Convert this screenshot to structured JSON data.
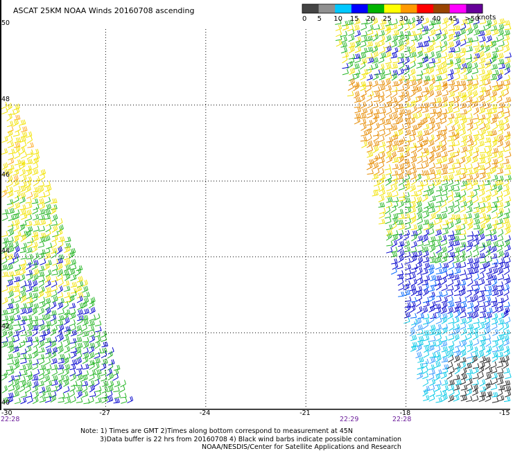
{
  "title": "ASCAT 25KM NOAA Winds 20160708 ascending",
  "legend": {
    "labels": [
      "0",
      "5",
      "10",
      "15",
      "20",
      "25",
      "30",
      "35",
      "40",
      "45",
      ">50"
    ],
    "units": "knots",
    "colors": [
      "#444444",
      "#909090",
      "#00c8ff",
      "#0000ff",
      "#00b400",
      "#ffff00",
      "#ff9900",
      "#ff0000",
      "#994400",
      "#ff00ff",
      "#660099"
    ]
  },
  "map": {
    "lat_labels": [
      "50",
      "48",
      "46",
      "44",
      "42",
      "40"
    ],
    "lon_labels": [
      "-30",
      "-27",
      "-24",
      "-21",
      "-18",
      "-15"
    ],
    "lat_range": [
      40,
      50
    ],
    "lon_range": [
      -30,
      -15
    ],
    "grid": "dotted"
  },
  "times": [
    "22:28",
    "22:29",
    "22:28"
  ],
  "notes": [
    "Note: 1) Times are GMT 2)Times along bottom correspond to measurement at 45N",
    "3)Data buffer is 22 hrs from 20160708 4) Black wind barbs indicate possible contamination",
    "NOAA/NESDIS/Center for Satellite Applications and Research"
  ]
}
